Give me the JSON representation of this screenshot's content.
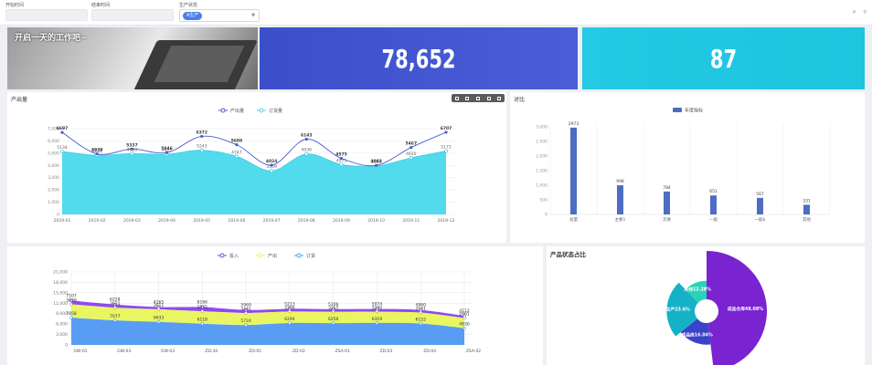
{
  "filters": [
    {
      "label": "开始时间",
      "value": ""
    },
    {
      "label": "结束时间",
      "value": ""
    },
    {
      "label": "生产状态",
      "tag": "A生产"
    }
  ],
  "hero": {
    "text": "开启一天的工作吧~"
  },
  "kpis": [
    {
      "value": "78,652",
      "color": "#3f53cf"
    },
    {
      "value": "87",
      "color": "#22c7e2"
    }
  ],
  "panels": {
    "output_title": "产出量",
    "compare_title": "对比",
    "bottom_title": "",
    "pie_title": "产品状态占比"
  },
  "chart_data": [
    {
      "type": "line",
      "title": "产出量",
      "series": [
        {
          "name": "产出量",
          "values": [
            6697,
            4939,
            5337,
            5046,
            6372,
            5688,
            4024,
            6143,
            4575,
            4003,
            5467,
            6707
          ],
          "color": "#4a5ed0"
        },
        {
          "name": "订货量",
          "values": [
            5134,
            4828,
            4963,
            4912,
            5243,
            4747,
            3559,
            4936,
            4075,
            3944,
            4620,
            5171
          ],
          "color": "#49d9ec"
        }
      ],
      "categories": [
        "2019-01",
        "2019-02",
        "2019-03",
        "2019-04",
        "2019-05",
        "2019-06",
        "2019-07",
        "2019-08",
        "2019-09",
        "2019-10",
        "2019-11",
        "2019-12"
      ],
      "ylim": [
        0,
        7000
      ],
      "yticks": [
        "0",
        "1,000",
        "2,000",
        "3,000",
        "4,000",
        "5,000",
        "6,000",
        "7,000"
      ],
      "legend": "top-center"
    },
    {
      "type": "bar",
      "title": "对比",
      "series": [
        {
          "name": "年度指标",
          "values": [
            2973,
            998,
            784,
            651,
            567,
            331
          ],
          "color": "#4d6dc2"
        }
      ],
      "categories": [
        "总量",
        "主要1",
        "次要",
        "一般",
        "一般b",
        "其他"
      ],
      "ylim": [
        0,
        3000
      ],
      "yticks": [
        "0",
        "500",
        "1,000",
        "1,500",
        "2,000",
        "2,500",
        "3,000"
      ],
      "legend": "top-center"
    },
    {
      "type": "area",
      "series": [
        {
          "name": "投入",
          "values": [
            7107,
            6228,
            4265,
            8166,
            5969,
            5213,
            5106,
            5074,
            4860,
            4112
          ],
          "color": "#8b3ff0"
        },
        {
          "name": "产出",
          "values": [
            3839,
            3621,
            3611,
            3555,
            3441,
            3306,
            3255,
            3240,
            3161,
            2901
          ],
          "color": "#e8f55a"
        },
        {
          "name": "订货",
          "values": [
            7858,
            7077,
            6633,
            6118,
            5724,
            6294,
            6256,
            6319,
            6152,
            4830
          ],
          "color": "#4f98f2"
        }
      ],
      "categories": [
        "GW-01",
        "GW-03",
        "GW-03",
        "ZD-30",
        "ZD-01",
        "ZD-02",
        "ZSA-01",
        "ZD-03",
        "ZD-04",
        "ZSA-02"
      ],
      "ylim": [
        0,
        21000
      ],
      "yticks": [
        "0",
        "3,000",
        "6,000",
        "9,000",
        "12,000",
        "15,000",
        "18,000",
        "21,000"
      ],
      "legend": "top-center"
    },
    {
      "type": "pie",
      "title": "产品状态占比",
      "slices": [
        {
          "label": "成品仓库",
          "percent": 48.08,
          "text": "成品仓库48.08%",
          "color": "#7a23d0"
        },
        {
          "label": "成品库",
          "percent": 16.04,
          "text": "成品库16.04%",
          "color": "#3a42c7"
        },
        {
          "label": "生产",
          "percent": 23.6,
          "text": "生产23.6%",
          "color": "#15b2c7"
        },
        {
          "label": "其他",
          "percent": 12.28,
          "text": "其他12.28%",
          "color": "#29d3b7"
        }
      ]
    }
  ]
}
